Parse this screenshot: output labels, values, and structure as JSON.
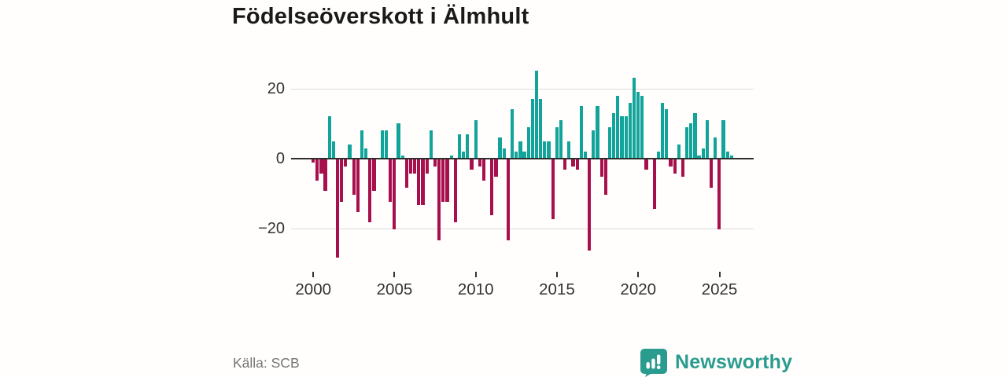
{
  "title": "Födelseöverskott i Älmhult",
  "source": "Källa: SCB",
  "logo": {
    "text": "Newsworthy",
    "icon": "speech-bubble-bar-chart",
    "color": "#2a9c8f"
  },
  "colors": {
    "positive_bar": "#12a49a",
    "negative_bar": "#a8104d",
    "gridline": "#dcdcdc",
    "zero_axis": "#2e2e2e",
    "axis_text": "#333333",
    "muted_text": "#757575"
  },
  "chart_data": {
    "type": "bar",
    "title": "Födelseöverskott i Älmhult",
    "frequency": "quarterly",
    "start": "2000Q1",
    "end": "2025Q4",
    "xlabel": "",
    "ylabel": "",
    "grid": "horizontal",
    "x_ticks": [
      2000,
      2005,
      2010,
      2015,
      2020,
      2025
    ],
    "y_ticks": [
      20,
      0,
      -20
    ],
    "y_tick_labels": [
      "20",
      "0",
      "−20"
    ],
    "ylim": [
      -29,
      26
    ],
    "series": [
      {
        "name": "Födelseöverskott",
        "values_by_year": {
          "2000": [
            -1,
            -6,
            -4,
            -9
          ],
          "2001": [
            12,
            5,
            -28,
            -12
          ],
          "2002": [
            -2,
            4,
            -10,
            -15
          ],
          "2003": [
            8,
            3,
            -18,
            -9
          ],
          "2004": [
            0,
            8,
            8,
            -12
          ],
          "2005": [
            -20,
            10,
            1,
            -8
          ],
          "2006": [
            -4,
            -4,
            -13,
            -13
          ],
          "2007": [
            -4,
            8,
            -2,
            -23
          ],
          "2008": [
            -12,
            -12,
            1,
            -18
          ],
          "2009": [
            7,
            2,
            7,
            -3
          ],
          "2010": [
            11,
            -2,
            -6,
            0
          ],
          "2011": [
            -16,
            -5,
            6,
            3
          ],
          "2012": [
            -23,
            14,
            2,
            5
          ],
          "2013": [
            2,
            9,
            17,
            25
          ],
          "2014": [
            17,
            5,
            5,
            -17
          ],
          "2015": [
            9,
            11,
            -3,
            5
          ],
          "2016": [
            -2,
            -3,
            15,
            2
          ],
          "2017": [
            -26,
            8,
            15,
            -5
          ],
          "2018": [
            -10,
            9,
            13,
            18
          ],
          "2019": [
            12,
            12,
            16,
            23
          ],
          "2020": [
            19,
            18,
            -3,
            0
          ],
          "2021": [
            -14,
            2,
            16,
            14
          ],
          "2022": [
            -2,
            -4,
            4,
            -5
          ],
          "2023": [
            9,
            10,
            13,
            1
          ],
          "2024": [
            3,
            11,
            -8,
            6
          ],
          "2025": [
            -20,
            11,
            2,
            1
          ]
        }
      }
    ],
    "legend": null
  }
}
